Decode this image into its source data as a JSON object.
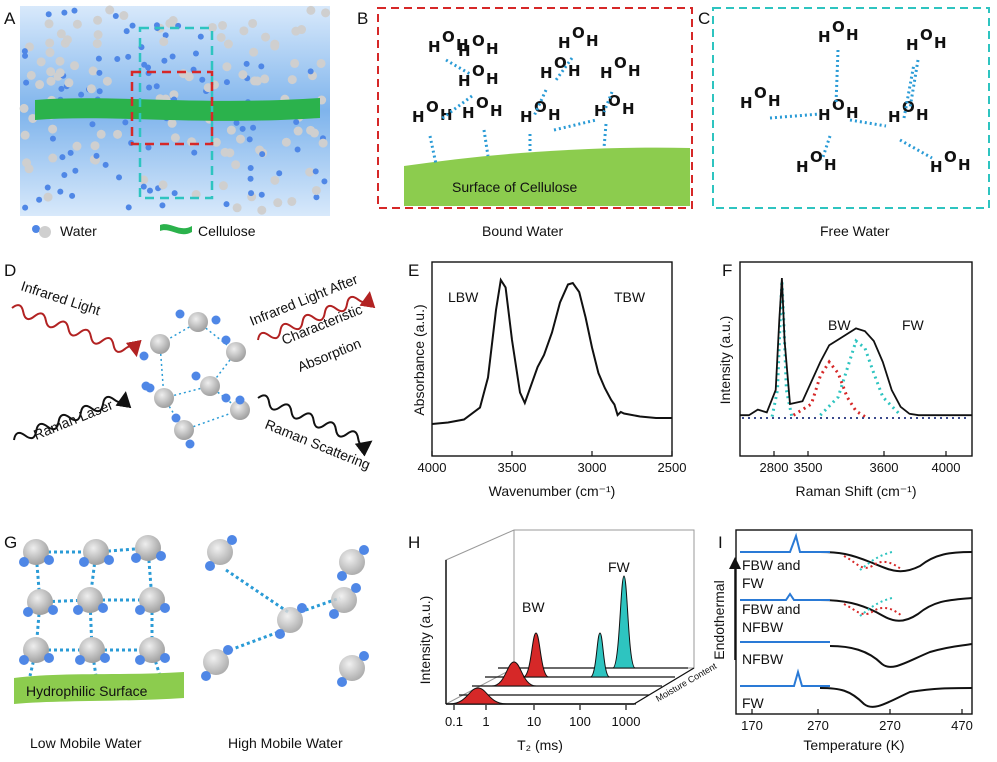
{
  "panels": {
    "A": {
      "letter": "A",
      "legend_water": "Water",
      "legend_cellulose": "Cellulose"
    },
    "B": {
      "letter": "B",
      "surface_label": "Surface of Cellulose",
      "caption": "Bound Water"
    },
    "C": {
      "letter": "C",
      "caption": "Free Water"
    },
    "D": {
      "letter": "D",
      "infrared": "Infrared Light",
      "infrared_after": "Infrared Light After",
      "characteristic": "Characteristic",
      "absorption": "Absorption",
      "raman_laser": "Raman Laser",
      "raman_scattering": "Raman Scattering"
    },
    "E": {
      "letter": "E",
      "ylabel": "Absorbance (a.u.)",
      "xlabel": "Wavenumber (cm⁻¹)",
      "peak1": "LBW",
      "peak2": "TBW"
    },
    "F": {
      "letter": "F",
      "ylabel": "Intensity (a.u.)",
      "xlabel": "Raman Shift (cm⁻¹)",
      "peak1": "BW",
      "peak2": "FW"
    },
    "G": {
      "letter": "G",
      "surface_label": "Hydrophilic Surface",
      "caption_left": "Low Mobile Water",
      "caption_right": "High Mobile Water"
    },
    "H": {
      "letter": "H",
      "ylabel": "Intensity (a.u.)",
      "xlabel": "T₂ (ms)",
      "depth_label": "Moisture Content",
      "peak1": "BW",
      "peak2": "FW"
    },
    "I": {
      "letter": "I",
      "ylabel": "Endothermal",
      "xlabel": "Temperature (K)",
      "curve1": "FBW and",
      "curve1b": "FW",
      "curve2": "FBW and",
      "curve2b": "NFBW",
      "curve3": "NFBW",
      "curve4": "FW"
    }
  },
  "chart_data": [
    {
      "type": "line",
      "panel": "E",
      "xlabel": "Wavenumber (cm⁻¹)",
      "ylabel": "Absorbance (a.u.)",
      "xlim": [
        4000,
        2500
      ],
      "xticks": [
        "4000",
        "3500",
        "3000",
        "2500"
      ],
      "series": [
        {
          "x": [
            4000,
            3900,
            3800,
            3700,
            3650,
            3600,
            3570,
            3540,
            3500,
            3450,
            3420,
            3380,
            3340,
            3300,
            3250,
            3200,
            3150,
            3120,
            3080,
            3040,
            3000,
            2960,
            2920,
            2880,
            2860,
            2840,
            2820,
            2800,
            2700,
            2600,
            2500
          ],
          "y": [
            0.04,
            0.05,
            0.07,
            0.15,
            0.35,
            0.8,
            1.0,
            0.95,
            0.6,
            0.25,
            0.18,
            0.3,
            0.42,
            0.5,
            0.65,
            0.85,
            0.97,
            0.98,
            0.92,
            0.75,
            0.55,
            0.38,
            0.28,
            0.2,
            0.17,
            0.1,
            0.12,
            0.11,
            0.09,
            0.08,
            0.08
          ]
        }
      ]
    },
    {
      "type": "line",
      "panel": "F",
      "xlabel": "Raman Shift (cm⁻¹)",
      "ylabel": "Intensity (a.u.)",
      "xticks": [
        "2800",
        "3500",
        "3600",
        "4000"
      ],
      "series": [
        {
          "name": "total",
          "x": [
            2700,
            2750,
            2800,
            2850,
            2900,
            2920,
            2935,
            2950,
            2980,
            3050,
            3150,
            3200,
            3250,
            3300,
            3350,
            3400,
            3450,
            3500,
            3550,
            3600,
            3650,
            3700,
            3800,
            3900,
            4000
          ],
          "y": [
            0.02,
            0.02,
            0.06,
            0.04,
            0.2,
            0.7,
            1.0,
            0.55,
            0.1,
            0.12,
            0.4,
            0.52,
            0.56,
            0.6,
            0.64,
            0.62,
            0.55,
            0.4,
            0.2,
            0.08,
            0.03,
            0.02,
            0.02,
            0.02,
            0.02
          ]
        },
        {
          "name": "BW",
          "x": [
            3000,
            3100,
            3150,
            3200,
            3250,
            3300,
            3350,
            3400
          ],
          "y": [
            0.02,
            0.1,
            0.3,
            0.4,
            0.32,
            0.15,
            0.05,
            0.01
          ]
        },
        {
          "name": "FW",
          "x": [
            3150,
            3250,
            3300,
            3350,
            3400,
            3450,
            3500,
            3600
          ],
          "y": [
            0.02,
            0.15,
            0.35,
            0.55,
            0.5,
            0.32,
            0.15,
            0.02
          ]
        }
      ]
    },
    {
      "type": "area",
      "panel": "H",
      "xlabel": "T₂ (ms)",
      "ylabel": "Intensity (a.u.)",
      "xticks": [
        "0.1",
        "1",
        "10",
        "100",
        "1000"
      ],
      "series": [
        {
          "name": "BW",
          "peaks_T2_ms": [
            1,
            5,
            10
          ]
        },
        {
          "name": "FW",
          "peaks_T2_ms": [
            200,
            600
          ]
        }
      ]
    },
    {
      "type": "line",
      "panel": "I",
      "xlabel": "Temperature (K)",
      "ylabel": "Endothermal",
      "xticks": [
        "170",
        "270",
        "270",
        "470"
      ],
      "series": [
        {
          "name": "FBW and FW"
        },
        {
          "name": "FBW and NFBW"
        },
        {
          "name": "NFBW"
        },
        {
          "name": "FW"
        }
      ]
    }
  ],
  "colors": {
    "green": "#2bb24c",
    "water_blue": "#4f87e6",
    "red": "#d62828",
    "cyan": "#2ec4c0",
    "ir_red": "#b22222",
    "surface_green": "#8ccc4e"
  }
}
